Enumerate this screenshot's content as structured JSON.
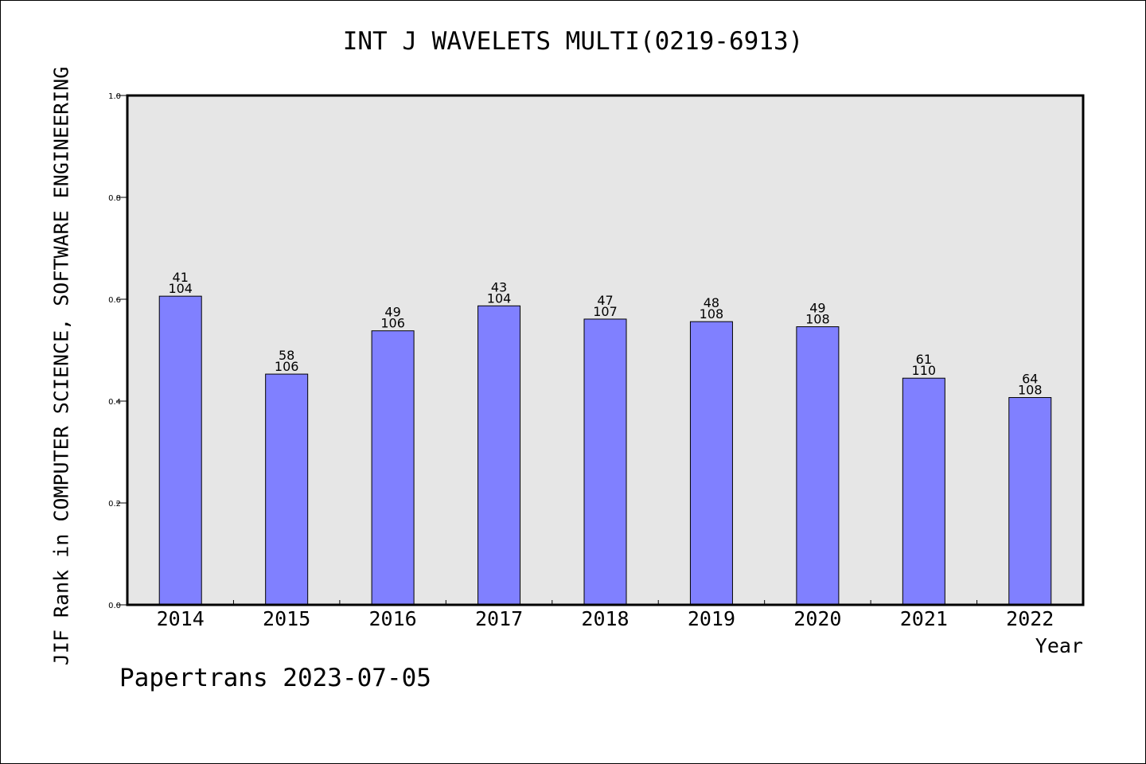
{
  "chart_data": {
    "type": "bar",
    "title": "INT J WAVELETS MULTI(0219-6913)",
    "xlabel": "Year",
    "ylabel": "JIF Rank in COMPUTER SCIENCE, SOFTWARE ENGINEERING",
    "ylim": [
      0,
      1.0
    ],
    "yticks": [
      "0.0",
      "0.2",
      "0.4",
      "0.6",
      "0.8",
      "1.0"
    ],
    "categories": [
      "2014",
      "2015",
      "2016",
      "2017",
      "2018",
      "2019",
      "2020",
      "2021",
      "2022"
    ],
    "values": [
      0.606,
      0.453,
      0.538,
      0.587,
      0.561,
      0.556,
      0.546,
      0.445,
      0.407
    ],
    "rank_labels": [
      "41",
      "58",
      "49",
      "43",
      "47",
      "48",
      "49",
      "61",
      "64"
    ],
    "total_labels": [
      "104",
      "106",
      "106",
      "104",
      "107",
      "108",
      "108",
      "110",
      "108"
    ],
    "bar_color": "#8080ff",
    "plot_background": "#e6e6e6",
    "grid": false
  },
  "footer": {
    "text": "Papertrans 2023-07-05"
  }
}
